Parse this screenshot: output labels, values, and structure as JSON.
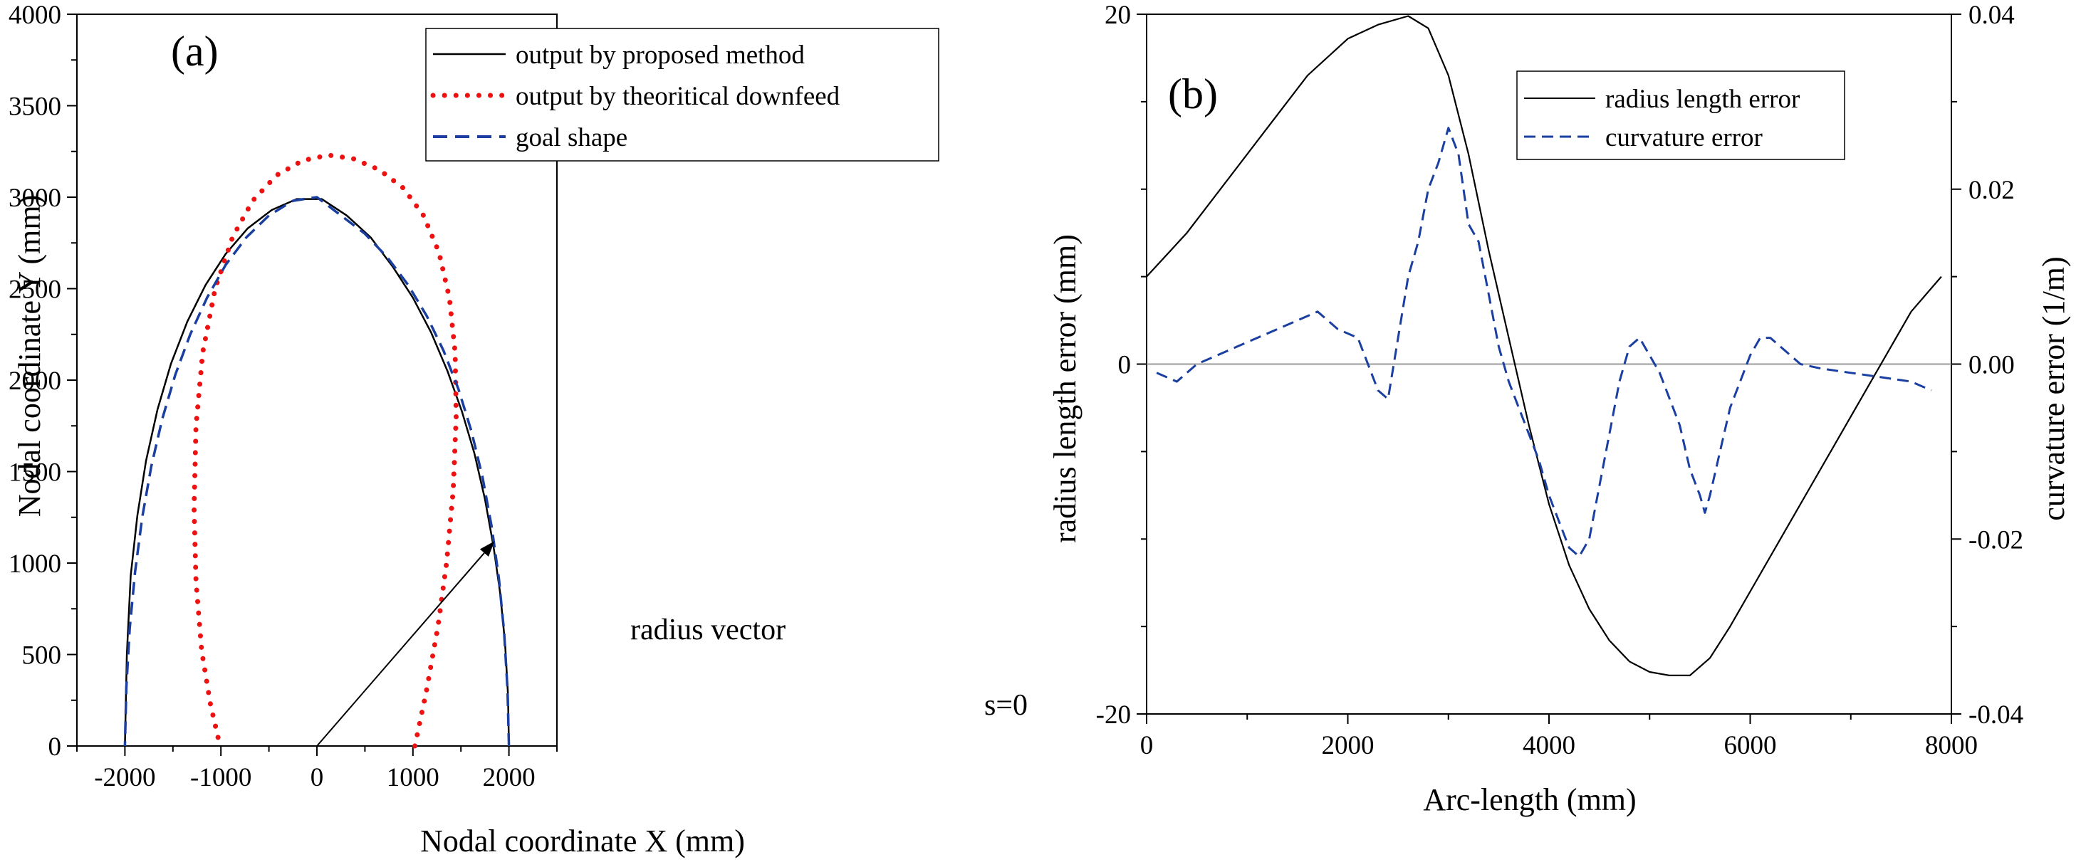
{
  "colors": {
    "black": "#000000",
    "red": "#ee1111",
    "blue": "#1a3fa0",
    "grey": "#9a9a9a"
  },
  "chart_data": [
    {
      "panel": "(a)",
      "type": "line",
      "xlabel": "Nodal coordinate X (mm)",
      "ylabel": "Nodal coordinate Y (mm)",
      "xlim": [
        -2500,
        2500
      ],
      "ylim": [
        0,
        4000
      ],
      "xticks": [
        -2000,
        -1000,
        0,
        1000,
        2000
      ],
      "yticks": [
        0,
        500,
        1000,
        1500,
        2000,
        2500,
        3000,
        3500,
        4000
      ],
      "xtick_labels": [
        "-2000",
        "-1000",
        "0",
        "1000",
        "2000"
      ],
      "ytick_labels": [
        "0",
        "500",
        "1000",
        "1500",
        "2000",
        "2500",
        "3000",
        "3500",
        "4000"
      ],
      "legend_position": "top-right",
      "series": [
        {
          "name": "output by proposed method",
          "style": "solid",
          "color": "#000000",
          "x": [
            2000,
            1990,
            1960,
            1910,
            1840,
            1750,
            1640,
            1510,
            1360,
            1190,
            1000,
            790,
            560,
            310,
            50,
            -210,
            -470,
            -720,
            -950,
            -1160,
            -1350,
            -1520,
            -1660,
            -1780,
            -1870,
            -1940,
            -1980,
            -2000
          ],
          "y": [
            0,
            280,
            560,
            830,
            1090,
            1350,
            1600,
            1830,
            2050,
            2260,
            2450,
            2620,
            2780,
            2900,
            2990,
            2990,
            2930,
            2830,
            2690,
            2520,
            2320,
            2090,
            1840,
            1560,
            1260,
            930,
            500,
            0
          ]
        },
        {
          "name": "output by theoritical downfeed",
          "style": "dotted",
          "color": "#ee1111",
          "x": [
            1020,
            1140,
            1260,
            1350,
            1420,
            1450,
            1440,
            1380,
            1270,
            1110,
            900,
            650,
            380,
            120,
            -150,
            -420,
            -670,
            -880,
            -1060,
            -1190,
            -1260,
            -1280,
            -1260,
            -1200,
            -1110,
            -1010
          ],
          "y": [
            0,
            300,
            650,
            1000,
            1400,
            1800,
            2150,
            2450,
            2700,
            2900,
            3050,
            3150,
            3210,
            3230,
            3200,
            3120,
            2980,
            2780,
            2500,
            2150,
            1750,
            1300,
            900,
            520,
            230,
            0
          ]
        },
        {
          "name": "goal shape",
          "style": "dashed",
          "color": "#1a3fa0",
          "x": [
            2000,
            1985,
            1950,
            1895,
            1820,
            1725,
            1610,
            1475,
            1320,
            1145,
            950,
            735,
            500,
            250,
            0,
            -250,
            -500,
            -735,
            -950,
            -1145,
            -1320,
            -1475,
            -1610,
            -1725,
            -1820,
            -1895,
            -1950,
            -1985,
            -2000
          ],
          "y": [
            0,
            310,
            620,
            920,
            1200,
            1470,
            1720,
            1950,
            2160,
            2350,
            2520,
            2670,
            2800,
            2900,
            3000,
            2980,
            2900,
            2780,
            2630,
            2450,
            2250,
            2030,
            1790,
            1530,
            1250,
            950,
            640,
            320,
            0
          ]
        }
      ],
      "annotations": [
        {
          "text": "radius vector",
          "arrow_from": [
            0,
            0
          ],
          "arrow_to": [
            1850,
            1120
          ]
        },
        {
          "text": "s=0",
          "at": [
            2250,
            200
          ]
        }
      ]
    },
    {
      "panel": "(b)",
      "type": "line",
      "xlabel": "Arc-length (mm)",
      "ylabel": "radius length error (mm)",
      "y2label": "curvature error (1/m)",
      "xlim": [
        0,
        8000
      ],
      "ylim": [
        -20,
        20
      ],
      "y2lim": [
        -0.04,
        0.04
      ],
      "xticks": [
        0,
        2000,
        4000,
        6000,
        8000
      ],
      "yticks": [
        -20,
        0,
        20
      ],
      "y2ticks": [
        -0.04,
        -0.02,
        0.0,
        0.02,
        0.04
      ],
      "xtick_labels": [
        "0",
        "2000",
        "4000",
        "6000",
        "8000"
      ],
      "ytick_labels": [
        "-20",
        "0",
        "20"
      ],
      "y2tick_labels": [
        "-0.04",
        "-0.02",
        "0.00",
        "0.02",
        "0.04"
      ],
      "zero_line": true,
      "legend_position": "top-right",
      "series": [
        {
          "name": "radius length error",
          "axis": "left",
          "style": "solid",
          "color": "#000000",
          "x": [
            0,
            400,
            800,
            1200,
            1600,
            2000,
            2300,
            2600,
            2800,
            3000,
            3200,
            3400,
            3600,
            3800,
            4000,
            4200,
            4400,
            4600,
            4800,
            5000,
            5200,
            5400,
            5600,
            5800,
            6000,
            6400,
            6800,
            7200,
            7600,
            7900
          ],
          "y": [
            5,
            7.5,
            10.5,
            13.5,
            16.5,
            18.6,
            19.4,
            19.9,
            19.2,
            16.5,
            12,
            6.5,
            1.5,
            -3.5,
            -8,
            -11.5,
            -14,
            -15.8,
            -17,
            -17.6,
            -17.8,
            -17.8,
            -16.8,
            -15,
            -13,
            -9,
            -5,
            -1,
            3,
            5
          ]
        },
        {
          "name": "curvature error",
          "axis": "right",
          "style": "dashed",
          "color": "#1a3fa0",
          "x": [
            100,
            300,
            500,
            700,
            900,
            1100,
            1300,
            1500,
            1700,
            1900,
            2100,
            2200,
            2300,
            2400,
            2500,
            2600,
            2700,
            2800,
            2900,
            3000,
            3100,
            3200,
            3300,
            3400,
            3500,
            3600,
            3700,
            3800,
            3900,
            4000,
            4100,
            4200,
            4300,
            4400,
            4500,
            4600,
            4700,
            4800,
            4900,
            5000,
            5100,
            5200,
            5300,
            5400,
            5500,
            5550,
            5600,
            5700,
            5800,
            5900,
            6000,
            6100,
            6200,
            6300,
            6400,
            6500,
            6700,
            7000,
            7300,
            7600,
            7800
          ],
          "y": [
            -0.001,
            -0.002,
            0,
            0.001,
            0.002,
            0.003,
            0.004,
            0.005,
            0.006,
            0.004,
            0.003,
            0,
            -0.003,
            -0.004,
            0.003,
            0.01,
            0.014,
            0.02,
            0.023,
            0.027,
            0.024,
            0.016,
            0.014,
            0.008,
            0.002,
            -0.002,
            -0.005,
            -0.008,
            -0.011,
            -0.015,
            -0.018,
            -0.021,
            -0.022,
            -0.02,
            -0.014,
            -0.008,
            -0.002,
            0.002,
            0.003,
            0.001,
            -0.001,
            -0.004,
            -0.007,
            -0.012,
            -0.015,
            -0.017,
            -0.015,
            -0.01,
            -0.005,
            -0.002,
            0.001,
            0.003,
            0.003,
            0.002,
            0.001,
            0,
            -0.0005,
            -0.001,
            -0.0015,
            -0.002,
            -0.003
          ]
        }
      ]
    }
  ]
}
